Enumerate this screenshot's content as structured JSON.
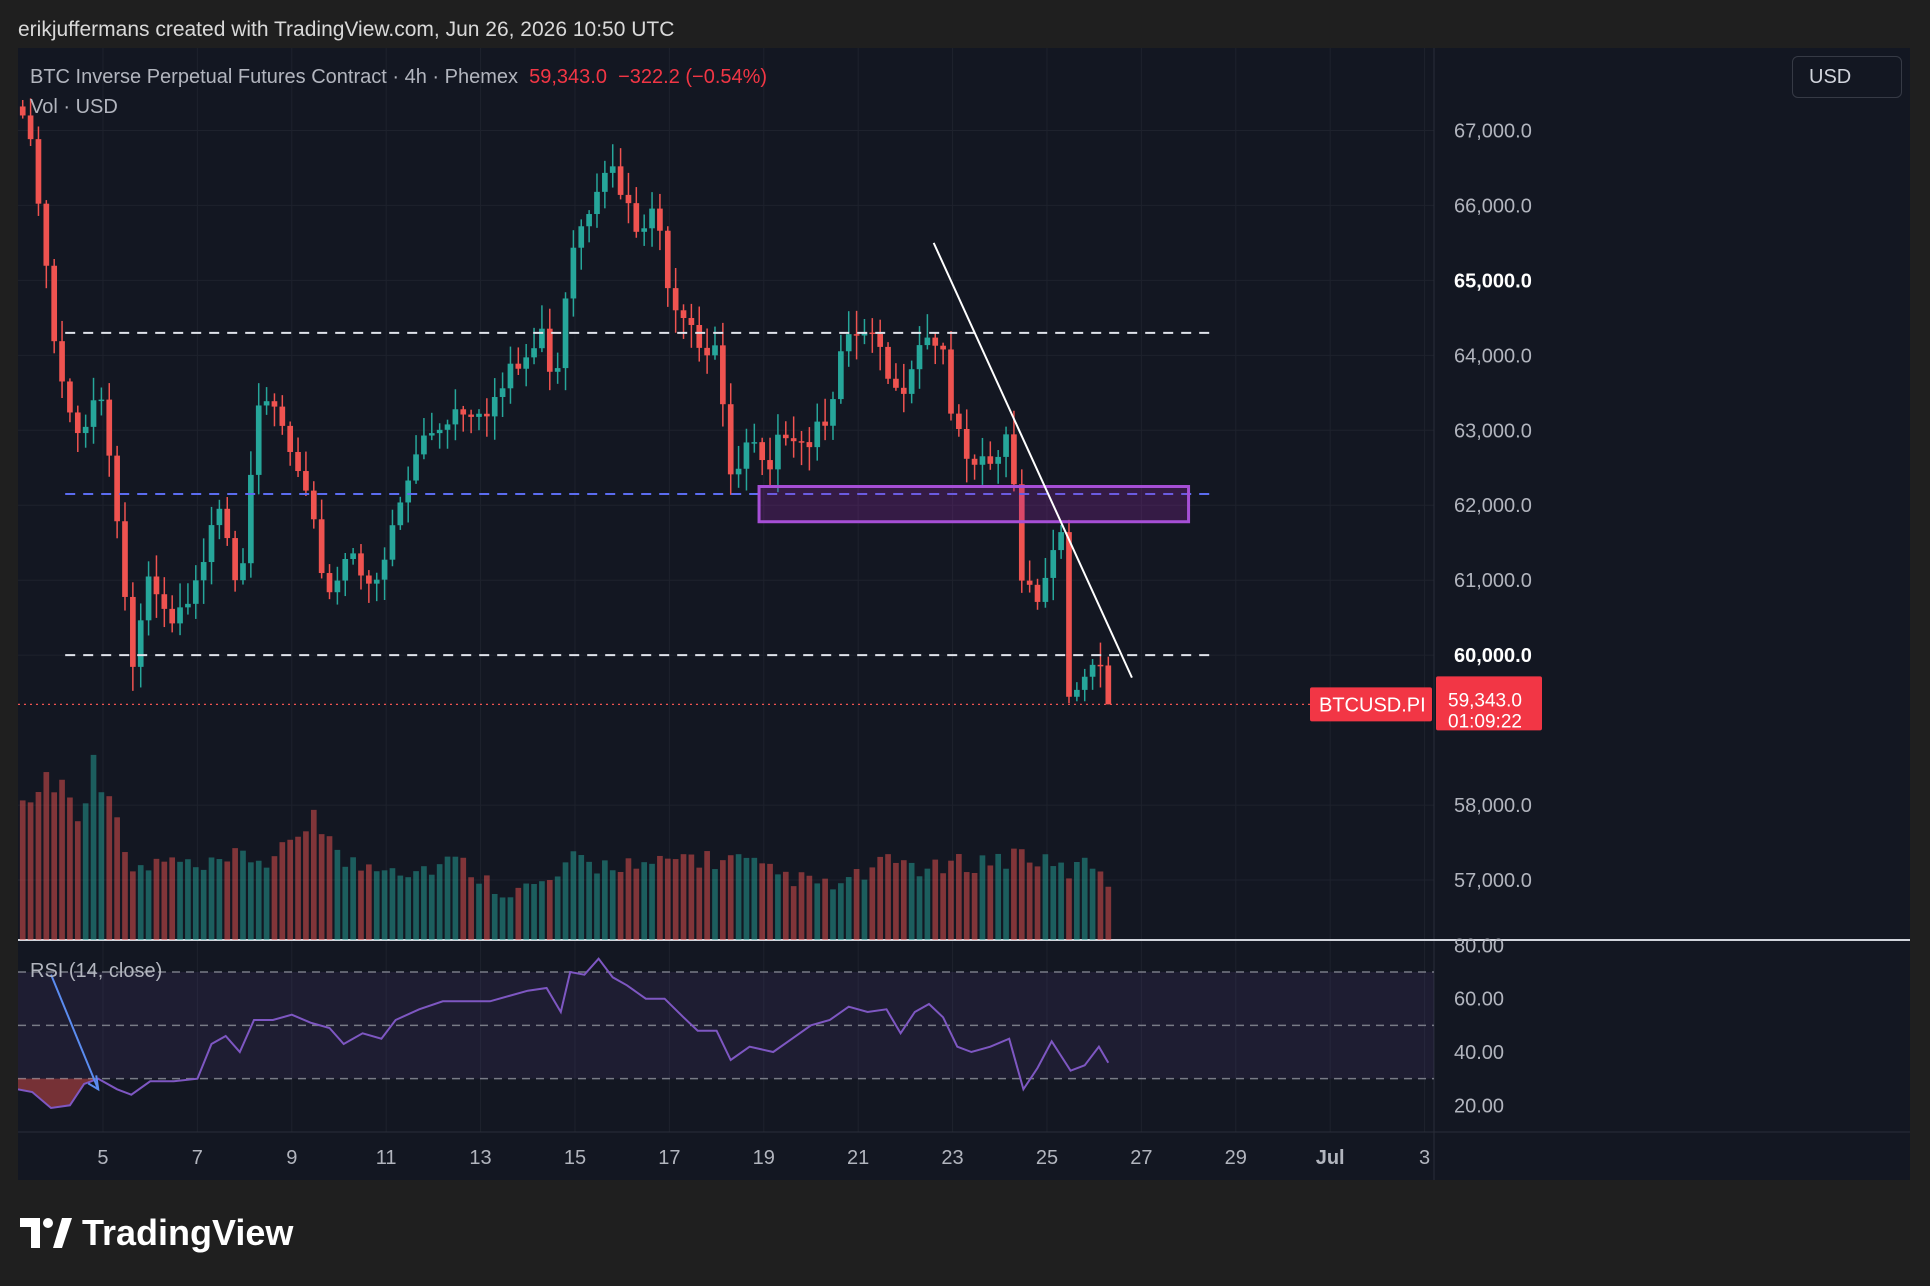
{
  "header": {
    "credit": "erikjuffermans created with TradingView.com, Jun 26, 2026 10:50 UTC"
  },
  "legend": {
    "symbol": "BTC Inverse Perpetual Futures Contract · 4h · Phemex",
    "last": "59,343.0",
    "change": "−322.2 (−0.54%)",
    "volume": "Vol · USD"
  },
  "currency_button": "USD",
  "footer": {
    "brand": "TradingView"
  },
  "colors": {
    "up": "#26a69a",
    "down": "#ef5350",
    "background": "#131722",
    "zone": "#9c27b0",
    "rsi": "#7e57c2"
  },
  "chart_data": {
    "type": "candlestick",
    "symbol": "BTCUSD.PI",
    "timeframe": "4h",
    "last_price": "59,343.0",
    "countdown": "01:09:22",
    "x_ticks": [
      "5",
      "7",
      "9",
      "11",
      "13",
      "15",
      "17",
      "19",
      "21",
      "23",
      "25",
      "27",
      "29",
      "Jul",
      "3"
    ],
    "y_ticks": [
      "67,000.0",
      "66,000.0",
      "65,000.0",
      "64,000.0",
      "63,000.0",
      "62,000.0",
      "61,000.0",
      "60,000.0",
      "58,000.0",
      "57,000.0"
    ],
    "y_ticks_bold": [
      "65,000.0",
      "60,000.0"
    ],
    "ylim": [
      56200,
      68100
    ],
    "x_range_days": [
      3.2,
      33.2
    ],
    "close_path": [
      [
        3.3,
        67200
      ],
      [
        3.6,
        66200
      ],
      [
        4.0,
        63900
      ],
      [
        4.4,
        62800
      ],
      [
        4.9,
        63700
      ],
      [
        5.3,
        62000
      ],
      [
        5.6,
        59800
      ],
      [
        6.0,
        60900
      ],
      [
        6.4,
        60300
      ],
      [
        6.9,
        60600
      ],
      [
        7.4,
        62300
      ],
      [
        7.9,
        61000
      ],
      [
        8.2,
        63000
      ],
      [
        8.6,
        63300
      ],
      [
        9.0,
        62600
      ],
      [
        9.5,
        61500
      ],
      [
        9.8,
        60900
      ],
      [
        10.3,
        61500
      ],
      [
        10.8,
        60800
      ],
      [
        11.3,
        62000
      ],
      [
        11.8,
        62900
      ],
      [
        12.4,
        63300
      ],
      [
        12.9,
        63400
      ],
      [
        13.3,
        63400
      ],
      [
        13.9,
        63900
      ],
      [
        14.3,
        64200
      ],
      [
        14.6,
        63800
      ],
      [
        14.9,
        65500
      ],
      [
        15.3,
        66100
      ],
      [
        15.6,
        66700
      ],
      [
        15.9,
        66200
      ],
      [
        16.3,
        65600
      ],
      [
        16.7,
        65800
      ],
      [
        17.1,
        64800
      ],
      [
        17.4,
        64700
      ],
      [
        17.7,
        64100
      ],
      [
        18.0,
        64300
      ],
      [
        18.3,
        62200
      ],
      [
        18.7,
        62800
      ],
      [
        19.1,
        62200
      ],
      [
        19.5,
        63200
      ],
      [
        19.9,
        62900
      ],
      [
        20.3,
        63300
      ],
      [
        20.6,
        63900
      ],
      [
        21.0,
        64200
      ],
      [
        21.3,
        64100
      ],
      [
        21.8,
        63400
      ],
      [
        22.2,
        64200
      ],
      [
        22.5,
        64400
      ],
      [
        22.8,
        64100
      ],
      [
        23.1,
        62800
      ],
      [
        23.5,
        62300
      ],
      [
        23.9,
        62600
      ],
      [
        24.2,
        62800
      ],
      [
        24.5,
        61000
      ],
      [
        24.8,
        60900
      ],
      [
        25.1,
        61400
      ],
      [
        25.3,
        61700
      ],
      [
        25.5,
        59300
      ],
      [
        25.8,
        59500
      ],
      [
        26.0,
        59900
      ],
      [
        26.3,
        59343
      ]
    ],
    "volume_path": [
      [
        3.3,
        2.6
      ],
      [
        3.6,
        2.8
      ],
      [
        3.9,
        3.2
      ],
      [
        4.2,
        2.8
      ],
      [
        4.5,
        2.6
      ],
      [
        4.9,
        3.4
      ],
      [
        5.2,
        2.9
      ],
      [
        5.5,
        1.3
      ],
      [
        6.0,
        1.4
      ],
      [
        6.5,
        1.5
      ],
      [
        7.0,
        1.3
      ],
      [
        7.5,
        1.4
      ],
      [
        8.0,
        1.6
      ],
      [
        8.5,
        1.5
      ],
      [
        9.0,
        1.7
      ],
      [
        9.5,
        2.6
      ],
      [
        10.0,
        1.5
      ],
      [
        10.5,
        1.4
      ],
      [
        11.0,
        1.5
      ],
      [
        11.5,
        1.3
      ],
      [
        12.0,
        1.4
      ],
      [
        12.5,
        1.5
      ],
      [
        13.0,
        1.2
      ],
      [
        13.5,
        0.9
      ],
      [
        14.0,
        1.0
      ],
      [
        14.5,
        1.1
      ],
      [
        15.0,
        1.5
      ],
      [
        15.5,
        1.4
      ],
      [
        16.0,
        1.5
      ],
      [
        16.5,
        1.3
      ],
      [
        17.0,
        1.5
      ],
      [
        17.5,
        1.6
      ],
      [
        18.0,
        1.5
      ],
      [
        18.5,
        1.5
      ],
      [
        19.0,
        1.3
      ],
      [
        19.5,
        1.2
      ],
      [
        20.0,
        1.1
      ],
      [
        20.5,
        1.0
      ],
      [
        21.0,
        1.2
      ],
      [
        21.5,
        1.4
      ],
      [
        22.0,
        1.5
      ],
      [
        22.5,
        1.3
      ],
      [
        23.0,
        1.4
      ],
      [
        23.5,
        1.5
      ],
      [
        24.0,
        1.5
      ],
      [
        24.5,
        1.7
      ],
      [
        25.0,
        1.4
      ],
      [
        25.5,
        1.3
      ],
      [
        26.0,
        1.5
      ],
      [
        26.3,
        1.1
      ]
    ],
    "rsi": {
      "label": "RSI (14, close)",
      "length": 14,
      "ticks": [
        "80.00",
        "60.00",
        "40.00",
        "20.00"
      ],
      "ylim": [
        10,
        82
      ],
      "levels": [
        70,
        50,
        30
      ],
      "path": [
        [
          3.2,
          26
        ],
        [
          3.5,
          25
        ],
        [
          3.9,
          19
        ],
        [
          4.3,
          20
        ],
        [
          4.6,
          28
        ],
        [
          4.9,
          30
        ],
        [
          5.3,
          26
        ],
        [
          5.6,
          24
        ],
        [
          6.0,
          29
        ],
        [
          6.5,
          29
        ],
        [
          7.0,
          30
        ],
        [
          7.3,
          43
        ],
        [
          7.6,
          46
        ],
        [
          7.9,
          40
        ],
        [
          8.2,
          52
        ],
        [
          8.6,
          52
        ],
        [
          9.0,
          54
        ],
        [
          9.4,
          51
        ],
        [
          9.8,
          49
        ],
        [
          10.1,
          43
        ],
        [
          10.5,
          47
        ],
        [
          10.9,
          45
        ],
        [
          11.2,
          52
        ],
        [
          11.7,
          56
        ],
        [
          12.2,
          59
        ],
        [
          12.7,
          59
        ],
        [
          13.2,
          59
        ],
        [
          13.6,
          61
        ],
        [
          14.0,
          63
        ],
        [
          14.4,
          64
        ],
        [
          14.7,
          55
        ],
        [
          14.9,
          70
        ],
        [
          15.2,
          69
        ],
        [
          15.5,
          75
        ],
        [
          15.8,
          68
        ],
        [
          16.1,
          65
        ],
        [
          16.5,
          60
        ],
        [
          16.9,
          60
        ],
        [
          17.3,
          53
        ],
        [
          17.6,
          48
        ],
        [
          18.0,
          48
        ],
        [
          18.3,
          37
        ],
        [
          18.7,
          42
        ],
        [
          19.2,
          40
        ],
        [
          19.6,
          45
        ],
        [
          20.0,
          50
        ],
        [
          20.4,
          52
        ],
        [
          20.8,
          57
        ],
        [
          21.2,
          55
        ],
        [
          21.6,
          56
        ],
        [
          21.9,
          47
        ],
        [
          22.2,
          55
        ],
        [
          22.5,
          58
        ],
        [
          22.8,
          53
        ],
        [
          23.1,
          42
        ],
        [
          23.4,
          40
        ],
        [
          23.8,
          42
        ],
        [
          24.2,
          45
        ],
        [
          24.5,
          26
        ],
        [
          24.8,
          34
        ],
        [
          25.1,
          44
        ],
        [
          25.5,
          33
        ],
        [
          25.8,
          35
        ],
        [
          26.1,
          42
        ],
        [
          26.3,
          36
        ]
      ]
    },
    "horizontal_levels": [
      {
        "price": 64300,
        "style": "dashed",
        "color": "#e0e3eb",
        "from_day": 4.2,
        "to_day": 28.6
      },
      {
        "price": 62150,
        "style": "dashed",
        "color": "#5b6cf0",
        "from_day": 4.2,
        "to_day": 28.6
      },
      {
        "price": 60000,
        "style": "dashed",
        "color": "#e0e3eb",
        "from_day": 4.2,
        "to_day": 28.6
      }
    ],
    "zone": {
      "from_day": 18.9,
      "to_day": 28.0,
      "price_top": 62250,
      "price_bottom": 61780
    },
    "trendline": {
      "from": [
        22.6,
        65500
      ],
      "to": [
        26.8,
        59700
      ]
    },
    "price_line": 59343
  }
}
